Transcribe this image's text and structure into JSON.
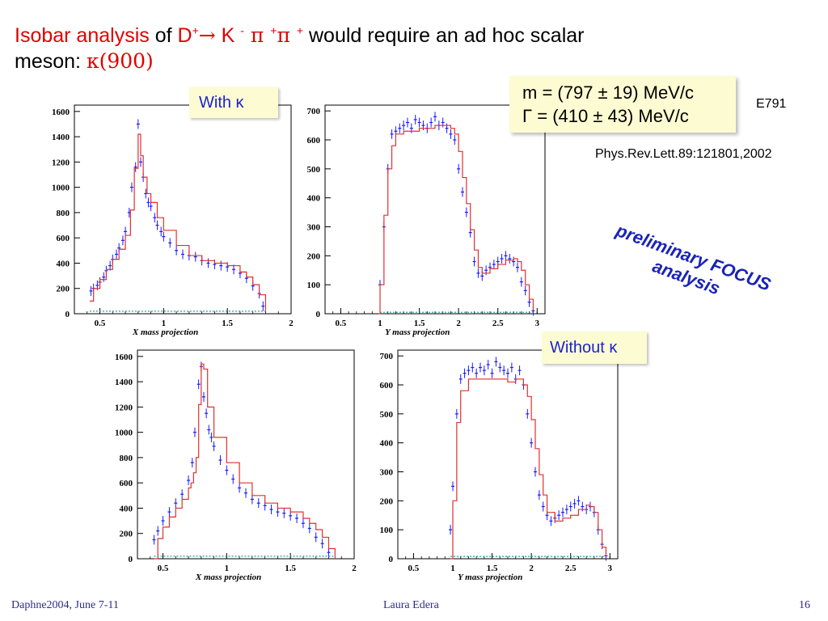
{
  "title": {
    "isobar": "Isobar analysis",
    "of": " of ",
    "d": "D",
    "d_sup": "+",
    "arrow": "→",
    "k": " K ",
    "k_sup": "-",
    "pi1": " π ",
    "pi1_sup": "+",
    "pi2": "π ",
    "pi2_sup": "+",
    "rest": " would require an ad hoc scalar",
    "line2": "meson: ",
    "kappa": "κ(900)"
  },
  "labels": {
    "with_kappa": "With κ",
    "without_kappa": "Without κ"
  },
  "fit": {
    "mass": "m = (797 ± 19) MeV/c",
    "width": "Γ = (410 ± 43) MeV/c"
  },
  "reference": {
    "experiment": "E791",
    "journal": "Phys.Rev.Lett.89:121801,2002"
  },
  "preliminary": "preliminary FOCUS analysis",
  "footer": {
    "left": "Daphne2004, June 7-11",
    "center": "Laura Edera",
    "right": "16"
  },
  "colors": {
    "title_red": "#e00000",
    "fit_curve": "#e03030",
    "data_points": "#1a1aff",
    "background_band": "#20a0a0",
    "preliminary_text": "#1a23b8",
    "footer_text": "#2c2c8a",
    "highlight_box": "#fdfbd2"
  },
  "chart_data": [
    {
      "id": "with-x",
      "panel_label": "With κ",
      "type": "line",
      "xlabel": "X mass projection",
      "ylabel": "",
      "xlim": [
        0.3,
        2.0
      ],
      "ylim": [
        0,
        1650
      ],
      "xticks": [
        0.5,
        1,
        1.5,
        2
      ],
      "xtick_labels": [
        "0.5",
        "1",
        "1.5",
        "2"
      ],
      "yticks": [
        0,
        200,
        400,
        600,
        800,
        1000,
        1200,
        1400,
        1600
      ],
      "series": [
        {
          "role": "data",
          "x": [
            0.43,
            0.45,
            0.48,
            0.5,
            0.53,
            0.55,
            0.58,
            0.6,
            0.63,
            0.65,
            0.68,
            0.7,
            0.73,
            0.75,
            0.78,
            0.8,
            0.82,
            0.84,
            0.86,
            0.88,
            0.9,
            0.93,
            0.95,
            0.98,
            1.0,
            1.05,
            1.1,
            1.15,
            1.2,
            1.25,
            1.3,
            1.35,
            1.4,
            1.45,
            1.5,
            1.55,
            1.6,
            1.65,
            1.7,
            1.75,
            1.78
          ],
          "y": [
            180,
            200,
            225,
            250,
            290,
            340,
            380,
            430,
            470,
            520,
            580,
            650,
            800,
            1000,
            1160,
            1500,
            1200,
            1080,
            950,
            880,
            850,
            760,
            700,
            650,
            610,
            560,
            500,
            470,
            460,
            450,
            420,
            400,
            390,
            380,
            370,
            350,
            320,
            280,
            220,
            160,
            60
          ]
        },
        {
          "role": "fit",
          "x": [
            0.42,
            0.45,
            0.5,
            0.55,
            0.6,
            0.65,
            0.7,
            0.74,
            0.77,
            0.8,
            0.82,
            0.84,
            0.87,
            0.9,
            0.95,
            1.0,
            1.1,
            1.2,
            1.3,
            1.4,
            1.5,
            1.6,
            1.65,
            1.7,
            1.75,
            1.8
          ],
          "y": [
            100,
            200,
            270,
            350,
            430,
            510,
            620,
            820,
            1150,
            1420,
            1250,
            1080,
            950,
            880,
            760,
            660,
            540,
            460,
            420,
            400,
            380,
            330,
            290,
            230,
            150,
            20
          ]
        },
        {
          "role": "background",
          "x": [
            0.42,
            1.8
          ],
          "y": [
            20,
            20
          ]
        }
      ]
    },
    {
      "id": "with-y",
      "panel_label": "With κ",
      "type": "line",
      "xlabel": "Y mass projection",
      "ylabel": "",
      "xlim": [
        0.3,
        3.1
      ],
      "ylim": [
        0,
        720
      ],
      "xticks": [
        0.5,
        1,
        1.5,
        2,
        2.5,
        3
      ],
      "xtick_labels": [
        "0.5",
        "1",
        "1.5",
        "2",
        "2.5",
        "3"
      ],
      "yticks": [
        0,
        100,
        200,
        300,
        400,
        500,
        600,
        700
      ],
      "series": [
        {
          "role": "data",
          "x": [
            1.0,
            1.05,
            1.1,
            1.15,
            1.2,
            1.25,
            1.3,
            1.35,
            1.4,
            1.45,
            1.5,
            1.55,
            1.6,
            1.65,
            1.7,
            1.75,
            1.8,
            1.85,
            1.9,
            1.95,
            2.0,
            2.05,
            2.1,
            2.15,
            2.2,
            2.25,
            2.3,
            2.35,
            2.4,
            2.45,
            2.5,
            2.55,
            2.6,
            2.65,
            2.7,
            2.75,
            2.8,
            2.85,
            2.9,
            2.95
          ],
          "y": [
            100,
            300,
            500,
            620,
            630,
            640,
            650,
            660,
            640,
            670,
            660,
            650,
            640,
            660,
            680,
            650,
            660,
            640,
            620,
            600,
            500,
            420,
            350,
            280,
            180,
            140,
            130,
            150,
            160,
            170,
            180,
            190,
            200,
            190,
            180,
            160,
            110,
            80,
            40,
            10
          ]
        },
        {
          "role": "fit",
          "x": [
            0.98,
            1.0,
            1.05,
            1.1,
            1.15,
            1.2,
            1.3,
            1.5,
            1.7,
            1.9,
            1.95,
            2.0,
            2.05,
            2.1,
            2.15,
            2.2,
            2.25,
            2.3,
            2.4,
            2.5,
            2.6,
            2.7,
            2.75,
            2.8,
            2.85,
            2.9,
            2.95
          ],
          "y": [
            0,
            100,
            340,
            500,
            580,
            620,
            630,
            640,
            650,
            640,
            620,
            560,
            470,
            380,
            290,
            220,
            160,
            140,
            155,
            170,
            185,
            190,
            180,
            150,
            100,
            50,
            10
          ]
        },
        {
          "role": "background",
          "x": [
            1.0,
            2.95
          ],
          "y": [
            5,
            5
          ]
        }
      ]
    },
    {
      "id": "without-x",
      "panel_label": "Without κ",
      "type": "line",
      "xlabel": "X mass projection",
      "ylabel": "",
      "xlim": [
        0.3,
        2.0
      ],
      "ylim": [
        0,
        1650
      ],
      "xticks": [
        0.5,
        1,
        1.5,
        2
      ],
      "xtick_labels": [
        "0.5",
        "1",
        "1.5",
        "2"
      ],
      "yticks": [
        0,
        200,
        400,
        600,
        800,
        1000,
        1200,
        1400,
        1600
      ],
      "series": [
        {
          "role": "data",
          "x": [
            0.43,
            0.46,
            0.5,
            0.55,
            0.6,
            0.65,
            0.7,
            0.73,
            0.75,
            0.78,
            0.8,
            0.82,
            0.84,
            0.86,
            0.88,
            0.9,
            0.95,
            1.0,
            1.05,
            1.1,
            1.15,
            1.2,
            1.25,
            1.3,
            1.35,
            1.4,
            1.45,
            1.5,
            1.55,
            1.6,
            1.65,
            1.7,
            1.75,
            1.8
          ],
          "y": [
            150,
            220,
            300,
            370,
            440,
            510,
            620,
            760,
            1000,
            1380,
            1520,
            1280,
            1150,
            1020,
            960,
            890,
            780,
            700,
            630,
            560,
            520,
            470,
            440,
            420,
            390,
            370,
            360,
            340,
            320,
            280,
            240,
            170,
            120,
            50
          ]
        },
        {
          "role": "fit",
          "x": [
            0.43,
            0.46,
            0.5,
            0.55,
            0.6,
            0.65,
            0.7,
            0.72,
            0.74,
            0.76,
            0.78,
            0.8,
            0.82,
            0.85,
            0.9,
            1.0,
            1.1,
            1.2,
            1.3,
            1.4,
            1.5,
            1.6,
            1.65,
            1.7,
            1.75,
            1.8,
            1.85
          ],
          "y": [
            0,
            160,
            250,
            330,
            400,
            470,
            560,
            600,
            680,
            800,
            1220,
            1540,
            1500,
            1200,
            960,
            760,
            600,
            500,
            440,
            400,
            370,
            320,
            280,
            230,
            170,
            80,
            0
          ]
        },
        {
          "role": "background",
          "x": [
            0.43,
            1.85
          ],
          "y": [
            20,
            20
          ]
        }
      ]
    },
    {
      "id": "without-y",
      "panel_label": "Without κ",
      "type": "line",
      "xlabel": "Y mass projection",
      "ylabel": "",
      "xlim": [
        0.3,
        3.1
      ],
      "ylim": [
        0,
        720
      ],
      "xticks": [
        0.5,
        1,
        1.5,
        2,
        2.5,
        3
      ],
      "xtick_labels": [
        "0.5",
        "1",
        "1.5",
        "2",
        "2.5",
        "3"
      ],
      "yticks": [
        0,
        100,
        200,
        300,
        400,
        500,
        600,
        700
      ],
      "series": [
        {
          "role": "data",
          "x": [
            0.97,
            1.0,
            1.05,
            1.1,
            1.15,
            1.2,
            1.25,
            1.3,
            1.35,
            1.4,
            1.45,
            1.5,
            1.55,
            1.6,
            1.65,
            1.7,
            1.75,
            1.8,
            1.85,
            1.9,
            1.95,
            2.0,
            2.05,
            2.1,
            2.15,
            2.2,
            2.25,
            2.3,
            2.35,
            2.4,
            2.45,
            2.5,
            2.55,
            2.6,
            2.65,
            2.7,
            2.75,
            2.8,
            2.85,
            2.9,
            2.95
          ],
          "y": [
            100,
            250,
            500,
            620,
            640,
            650,
            660,
            640,
            660,
            650,
            670,
            640,
            680,
            660,
            650,
            640,
            660,
            620,
            650,
            600,
            500,
            400,
            300,
            220,
            180,
            150,
            130,
            140,
            150,
            160,
            170,
            180,
            190,
            200,
            180,
            170,
            180,
            160,
            100,
            50,
            10
          ]
        },
        {
          "role": "fit",
          "x": [
            0.97,
            1.0,
            1.05,
            1.1,
            1.2,
            1.3,
            1.5,
            1.7,
            1.8,
            1.9,
            1.95,
            2.0,
            2.05,
            2.1,
            2.15,
            2.2,
            2.3,
            2.4,
            2.5,
            2.6,
            2.7,
            2.75,
            2.8,
            2.85,
            2.9,
            2.95
          ],
          "y": [
            0,
            200,
            470,
            580,
            620,
            620,
            620,
            610,
            620,
            600,
            560,
            480,
            380,
            290,
            220,
            160,
            130,
            140,
            150,
            170,
            185,
            180,
            160,
            100,
            40,
            5
          ]
        },
        {
          "role": "background",
          "x": [
            0.97,
            2.95
          ],
          "y": [
            8,
            8
          ]
        }
      ]
    }
  ]
}
